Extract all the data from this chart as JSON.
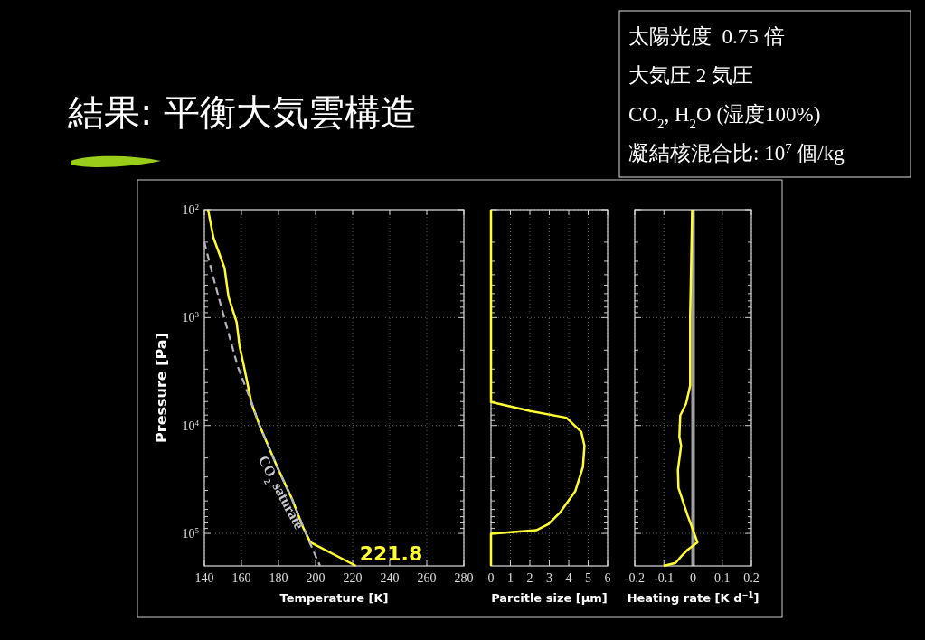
{
  "chart_data": [
    {
      "type": "other",
      "title": "結果: 平衡大気雲構造",
      "annotations": [
        "太陽光度  0.75 倍",
        "大気圧 2 気圧",
        "CO$_{2}$, H$_{2}$O (湿度100%)",
        "凝結核混合比: 10$^{7}$ 個/kg"
      ]
    },
    {
      "type": "line",
      "xlabel": "Temperature [K]",
      "ylabel": "Pressure [Pa]",
      "log": "y",
      "grid": true,
      "xlim": [
        140,
        280
      ],
      "xticks": [
        140,
        160,
        180,
        200,
        220,
        240,
        260,
        280
      ],
      "ylim": [
        200000,
        100
      ],
      "yticks": [
        {
          "value": 100,
          "label": "10$^{2}$"
        },
        {
          "value": 1000,
          "label": "10$^{3}$"
        },
        {
          "value": 10000,
          "label": "10$^{4}$"
        },
        {
          "value": 100000,
          "label": "10$^{5}$"
        },
        {
          "value": 200,
          "label": null
        },
        {
          "value": 300,
          "label": null
        },
        {
          "value": 400,
          "label": null
        },
        {
          "value": 500,
          "label": null
        },
        {
          "value": 600,
          "label": null
        },
        {
          "value": 700,
          "label": null
        },
        {
          "value": 800,
          "label": null
        },
        {
          "value": 900,
          "label": null
        },
        {
          "value": 2000,
          "label": null
        },
        {
          "value": 3000,
          "label": null
        },
        {
          "value": 4000,
          "label": null
        },
        {
          "value": 5000,
          "label": null
        },
        {
          "value": 6000,
          "label": null
        },
        {
          "value": 7000,
          "label": null
        },
        {
          "value": 8000,
          "label": null
        },
        {
          "value": 9000,
          "label": null
        },
        {
          "value": 20000,
          "label": null
        },
        {
          "value": 30000,
          "label": null
        },
        {
          "value": 40000,
          "label": null
        },
        {
          "value": 50000,
          "label": null
        },
        {
          "value": 60000,
          "label": null
        },
        {
          "value": 70000,
          "label": null
        },
        {
          "value": 80000,
          "label": null
        },
        {
          "value": 90000,
          "label": null
        }
      ],
      "series": [
        {
          "color": "#ffff33",
          "line_style": "solid",
          "x": [
            142,
            144.9,
            150.9,
            153,
            157.4,
            159,
            161.5,
            165.5,
            169.6,
            179.3,
            187.5,
            193.2,
            197.2,
            221.8
          ],
          "values": [
            100,
            182,
            347,
            638,
            1100,
            1840,
            2900,
            6270,
            9800,
            24200,
            49000,
            87500,
            121000,
            200000
          ]
        },
        {
          "color": "#b4b4bc",
          "line_style": "dashed",
          "x": [
            140,
            145.2,
            150.9,
            158.2,
            166.3,
            169.6,
            179.3,
            187.5,
            196.4,
            202.4
          ],
          "values": [
            200,
            448,
            1030,
            2900,
            6680,
            9800,
            24200,
            49000,
            117000,
            200000
          ]
        }
      ],
      "annotations": [
        "CO$_{2}$ saturate",
        {
          "text": "221.8",
          "x": 221.8,
          "y": 200000
        }
      ]
    },
    {
      "type": "line",
      "xlabel": "Parcitle size [μm]",
      "log": "y",
      "grid": true,
      "tick_labels": "x",
      "xlim": [
        0,
        6
      ],
      "xticks": [
        0,
        1,
        2,
        3,
        4,
        5,
        6
      ],
      "ylim": [
        200000,
        100
      ],
      "yticks": [
        {
          "value": 100,
          "label": null
        },
        {
          "value": 1000,
          "label": null
        },
        {
          "value": 10000,
          "label": null
        },
        {
          "value": 100000,
          "label": null
        },
        {
          "value": 200,
          "label": null
        },
        {
          "value": 300,
          "label": null
        },
        {
          "value": 400,
          "label": null
        },
        {
          "value": 500,
          "label": null
        },
        {
          "value": 600,
          "label": null
        },
        {
          "value": 700,
          "label": null
        },
        {
          "value": 800,
          "label": null
        },
        {
          "value": 900,
          "label": null
        },
        {
          "value": 2000,
          "label": null
        },
        {
          "value": 3000,
          "label": null
        },
        {
          "value": 4000,
          "label": null
        },
        {
          "value": 5000,
          "label": null
        },
        {
          "value": 6000,
          "label": null
        },
        {
          "value": 7000,
          "label": null
        },
        {
          "value": 8000,
          "label": null
        },
        {
          "value": 9000,
          "label": null
        },
        {
          "value": 20000,
          "label": null
        },
        {
          "value": 30000,
          "label": null
        },
        {
          "value": 40000,
          "label": null
        },
        {
          "value": 50000,
          "label": null
        },
        {
          "value": 60000,
          "label": null
        },
        {
          "value": 70000,
          "label": null
        },
        {
          "value": 80000,
          "label": null
        },
        {
          "value": 90000,
          "label": null
        }
      ],
      "series": [
        {
          "color": "#ffff33",
          "line_style": "solid",
          "x": [
            0,
            0,
            2.02,
            3.88,
            4.65,
            4.81,
            4.73,
            4.34,
            3.57,
            2.95,
            2.33,
            0,
            0
          ],
          "values": [
            100,
            6070,
            7360,
            8470,
            11500,
            15400,
            24200,
            40500,
            63500,
            82200,
            93500,
            101000,
            200000
          ]
        }
      ]
    },
    {
      "type": "line",
      "xlabel": "Heating rate [K d$^{−1}$]",
      "log": "y",
      "grid": true,
      "tick_labels": "x",
      "xlim": [
        -0.2,
        0.2
      ],
      "xticks": [
        -0.2,
        -0.1,
        0,
        0.1,
        0.2
      ],
      "ylim": [
        200000,
        100
      ],
      "yticks": [
        {
          "value": 100,
          "label": null
        },
        {
          "value": 1000,
          "label": null
        },
        {
          "value": 10000,
          "label": null
        },
        {
          "value": 100000,
          "label": null
        },
        {
          "value": 200,
          "label": null
        },
        {
          "value": 300,
          "label": null
        },
        {
          "value": 400,
          "label": null
        },
        {
          "value": 500,
          "label": null
        },
        {
          "value": 600,
          "label": null
        },
        {
          "value": 700,
          "label": null
        },
        {
          "value": 800,
          "label": null
        },
        {
          "value": 900,
          "label": null
        },
        {
          "value": 2000,
          "label": null
        },
        {
          "value": 3000,
          "label": null
        },
        {
          "value": 4000,
          "label": null
        },
        {
          "value": 5000,
          "label": null
        },
        {
          "value": 6000,
          "label": null
        },
        {
          "value": 7000,
          "label": null
        },
        {
          "value": 8000,
          "label": null
        },
        {
          "value": 9000,
          "label": null
        },
        {
          "value": 20000,
          "label": null
        },
        {
          "value": 30000,
          "label": null
        },
        {
          "value": 40000,
          "label": null
        },
        {
          "value": 50000,
          "label": null
        },
        {
          "value": 60000,
          "label": null
        },
        {
          "value": 70000,
          "label": null
        },
        {
          "value": 80000,
          "label": null
        },
        {
          "value": 90000,
          "label": null
        }
      ],
      "ref_lines": [
        {
          "axis": "x",
          "value": 0,
          "color": "#a0a0a0"
        }
      ],
      "series": [
        {
          "color": "#ffff33",
          "line_style": "solid",
          "x": [
            -0.003,
            -0.01,
            -0.01,
            -0.024,
            -0.044,
            -0.047,
            -0.041,
            -0.052,
            -0.05,
            -0.019,
            0,
            0.015,
            -0.019,
            -0.039,
            -0.06,
            -0.101
          ],
          "values": [
            100,
            970,
            4260,
            6270,
            8100,
            12700,
            15400,
            25800,
            37900,
            67700,
            93500,
            121000,
            142000,
            161000,
            188000,
            200000
          ]
        }
      ]
    }
  ]
}
